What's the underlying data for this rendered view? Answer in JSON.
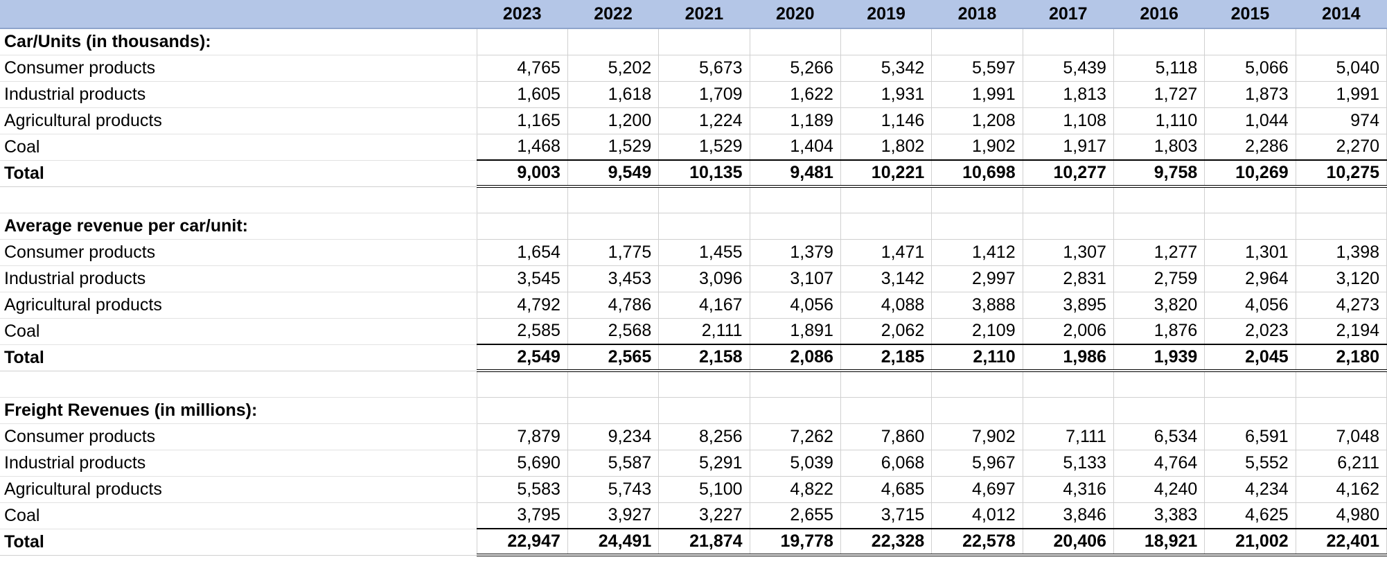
{
  "years": [
    "2023",
    "2022",
    "2021",
    "2020",
    "2019",
    "2018",
    "2017",
    "2016",
    "2015",
    "2014"
  ],
  "sections": [
    {
      "title": "Car/Units (in thousands):",
      "rows": [
        {
          "label": "Consumer products",
          "values": [
            "4,765",
            "5,202",
            "5,673",
            "5,266",
            "5,342",
            "5,597",
            "5,439",
            "5,118",
            "5,066",
            "5,040"
          ]
        },
        {
          "label": "Industrial products",
          "values": [
            "1,605",
            "1,618",
            "1,709",
            "1,622",
            "1,931",
            "1,991",
            "1,813",
            "1,727",
            "1,873",
            "1,991"
          ]
        },
        {
          "label": "Agricultural products",
          "values": [
            "1,165",
            "1,200",
            "1,224",
            "1,189",
            "1,146",
            "1,208",
            "1,108",
            "1,110",
            "1,044",
            "974"
          ]
        },
        {
          "label": "Coal",
          "values": [
            "1,468",
            "1,529",
            "1,529",
            "1,404",
            "1,802",
            "1,902",
            "1,917",
            "1,803",
            "2,286",
            "2,270"
          ]
        }
      ],
      "total": {
        "label": "Total",
        "values": [
          "9,003",
          "9,549",
          "10,135",
          "9,481",
          "10,221",
          "10,698",
          "10,277",
          "9,758",
          "10,269",
          "10,275"
        ]
      }
    },
    {
      "title": "Average revenue per car/unit:",
      "rows": [
        {
          "label": "Consumer products",
          "values": [
            "1,654",
            "1,775",
            "1,455",
            "1,379",
            "1,471",
            "1,412",
            "1,307",
            "1,277",
            "1,301",
            "1,398"
          ]
        },
        {
          "label": "Industrial products",
          "values": [
            "3,545",
            "3,453",
            "3,096",
            "3,107",
            "3,142",
            "2,997",
            "2,831",
            "2,759",
            "2,964",
            "3,120"
          ]
        },
        {
          "label": "Agricultural products",
          "values": [
            "4,792",
            "4,786",
            "4,167",
            "4,056",
            "4,088",
            "3,888",
            "3,895",
            "3,820",
            "4,056",
            "4,273"
          ]
        },
        {
          "label": "Coal",
          "values": [
            "2,585",
            "2,568",
            "2,111",
            "1,891",
            "2,062",
            "2,109",
            "2,006",
            "1,876",
            "2,023",
            "2,194"
          ]
        }
      ],
      "total": {
        "label": "Total",
        "values": [
          "2,549",
          "2,565",
          "2,158",
          "2,086",
          "2,185",
          "2,110",
          "1,986",
          "1,939",
          "2,045",
          "2,180"
        ]
      }
    },
    {
      "title": "Freight Revenues (in millions):",
      "rows": [
        {
          "label": "Consumer products",
          "values": [
            "7,879",
            "9,234",
            "8,256",
            "7,262",
            "7,860",
            "7,902",
            "7,111",
            "6,534",
            "6,591",
            "7,048"
          ]
        },
        {
          "label": "Industrial products",
          "values": [
            "5,690",
            "5,587",
            "5,291",
            "5,039",
            "6,068",
            "5,967",
            "5,133",
            "4,764",
            "5,552",
            "6,211"
          ]
        },
        {
          "label": "Agricultural products",
          "values": [
            "5,583",
            "5,743",
            "5,100",
            "4,822",
            "4,685",
            "4,697",
            "4,316",
            "4,240",
            "4,234",
            "4,162"
          ]
        },
        {
          "label": "Coal",
          "values": [
            "3,795",
            "3,927",
            "3,227",
            "2,655",
            "3,715",
            "4,012",
            "3,846",
            "3,383",
            "4,625",
            "4,980"
          ]
        }
      ],
      "total": {
        "label": "Total",
        "values": [
          "22,947",
          "24,491",
          "21,874",
          "19,778",
          "22,328",
          "22,578",
          "20,406",
          "18,921",
          "21,002",
          "22,401"
        ]
      }
    }
  ]
}
